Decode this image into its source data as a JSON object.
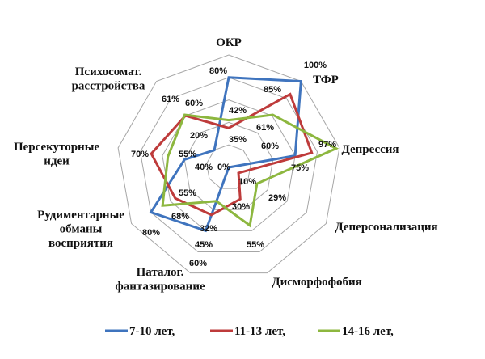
{
  "chart_data": {
    "type": "radar",
    "title": "",
    "axes": [
      "ОКР",
      "ТФР",
      "Депрессия",
      "Деперсонализация",
      "Дисморфофобия",
      "Паталог. фантазирование",
      "Рудиментарные обманы восприятия",
      "Персекуторные идеи",
      "Психосомат. расстройства"
    ],
    "axis_label_lines": [
      [
        "ОКР"
      ],
      [
        "ТФР"
      ],
      [
        "Депрессия"
      ],
      [
        "Деперсонализация"
      ],
      [
        "Дисморфофобия"
      ],
      [
        "Паталог.",
        "фантазирование"
      ],
      [
        "Рудиментарные",
        "обманы",
        "восприятия"
      ],
      [
        "Персекуторные",
        "идеи"
      ],
      [
        "Психосомат.",
        "расстройства"
      ]
    ],
    "range": [
      0,
      100
    ],
    "grid_step": 20,
    "unit": "%",
    "legend_position": "bottom",
    "series": [
      {
        "name": "7-10 лет,",
        "color": "#3F74BE",
        "values": [
          80,
          100,
          60,
          0,
          0,
          60,
          80,
          40,
          20
        ]
      },
      {
        "name": "11-13 лет,",
        "color": "#BE3B3B",
        "values": [
          35,
          85,
          75,
          10,
          30,
          45,
          55,
          70,
          60
        ]
      },
      {
        "name": "14-16 лет,",
        "color": "#8DB73F",
        "values": [
          42,
          61,
          97,
          29,
          55,
          32,
          68,
          55,
          61
        ]
      }
    ],
    "data_labels": [
      [
        "80%",
        "100%",
        "60%",
        "0%",
        "",
        "60%",
        "80%",
        "40%",
        "20%"
      ],
      [
        "35%",
        "85%",
        "75%",
        "10%",
        "30%",
        "45%",
        "55%",
        "70%",
        "60%"
      ],
      [
        "42%",
        "61%",
        "97%",
        "29%",
        "55%",
        "32%",
        "68%",
        "55%",
        "61%"
      ]
    ]
  }
}
